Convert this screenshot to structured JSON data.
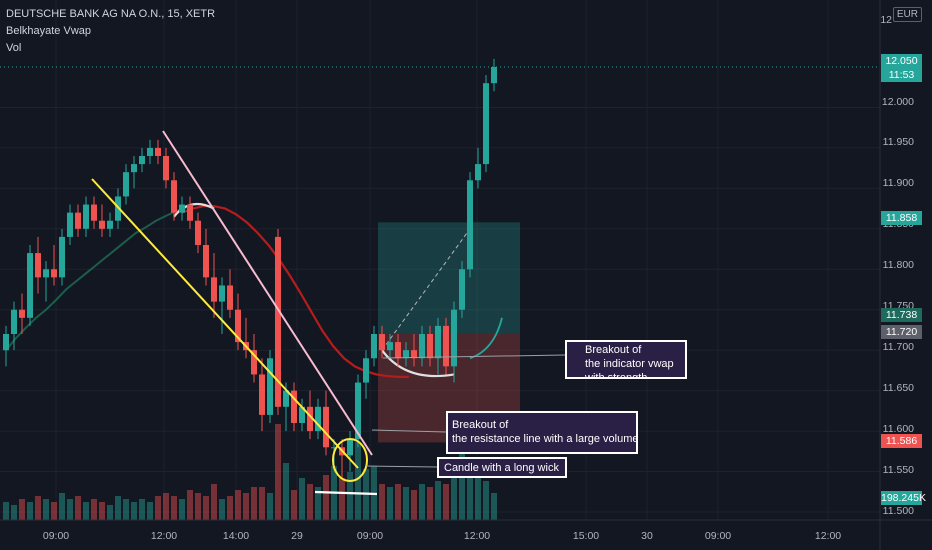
{
  "legend": {
    "symbol": "DEUTSCHE BANK AG NA O.N., 15, XETR",
    "indicator": "Belkhayate Vwap",
    "volume": "Vol"
  },
  "currency": "EUR",
  "price_axis": {
    "top_label": "12",
    "labels": [
      "12.000",
      "11.950",
      "11.900",
      "11.850",
      "11.800",
      "11.750",
      "11.700",
      "11.650",
      "11.600",
      "11.550",
      "11.500"
    ]
  },
  "price_badges": {
    "last_price": "12.050",
    "countdown": "11:53",
    "take_profit": "11.858",
    "vwap_level": "11.738",
    "entry": "11.720",
    "stop": "11.586",
    "volume_value": "198.245K"
  },
  "time_axis": {
    "labels": [
      "09:00",
      "12:00",
      "14:00",
      "29",
      "09:00",
      "12:00",
      "15:00",
      "30",
      "09:00",
      "12:00"
    ]
  },
  "colors": {
    "background": "#131722",
    "up": "#26a69a",
    "down": "#ef5350",
    "vwap_red": "#b71c1c",
    "vwap_green": "#1b5e4a",
    "yellow_line": "#ffeb3b",
    "pink_line": "#f8bbd0",
    "annotation_bg": "#2a1f44"
  },
  "annotations": {
    "vwap_breakout": [
      "Breakout of",
      "the indicator vwap",
      "with strength"
    ],
    "resistance_breakout": [
      "Breakout of",
      "the resistance line with a large volume"
    ],
    "long_wick": [
      "Candle with a long wick"
    ]
  },
  "chart_data": {
    "type": "candlestick",
    "symbol": "DEUTSCHE BANK AG NA O.N., 15, XETR",
    "timeframe": "15",
    "currency": "EUR",
    "ylim": [
      11.49,
      12.11
    ],
    "candles": [
      {
        "o": 11.7,
        "h": 11.73,
        "l": 11.68,
        "c": 11.72
      },
      {
        "o": 11.72,
        "h": 11.76,
        "l": 11.7,
        "c": 11.75
      },
      {
        "o": 11.75,
        "h": 11.77,
        "l": 11.72,
        "c": 11.74
      },
      {
        "o": 11.74,
        "h": 11.83,
        "l": 11.73,
        "c": 11.82
      },
      {
        "o": 11.82,
        "h": 11.84,
        "l": 11.77,
        "c": 11.79
      },
      {
        "o": 11.79,
        "h": 11.81,
        "l": 11.76,
        "c": 11.8
      },
      {
        "o": 11.8,
        "h": 11.83,
        "l": 11.78,
        "c": 11.79
      },
      {
        "o": 11.79,
        "h": 11.85,
        "l": 11.78,
        "c": 11.84
      },
      {
        "o": 11.84,
        "h": 11.88,
        "l": 11.83,
        "c": 11.87
      },
      {
        "o": 11.87,
        "h": 11.88,
        "l": 11.84,
        "c": 11.85
      },
      {
        "o": 11.85,
        "h": 11.89,
        "l": 11.84,
        "c": 11.88
      },
      {
        "o": 11.88,
        "h": 11.89,
        "l": 11.85,
        "c": 11.86
      },
      {
        "o": 11.86,
        "h": 11.88,
        "l": 11.84,
        "c": 11.85
      },
      {
        "o": 11.85,
        "h": 11.87,
        "l": 11.84,
        "c": 11.86
      },
      {
        "o": 11.86,
        "h": 11.9,
        "l": 11.85,
        "c": 11.89
      },
      {
        "o": 11.89,
        "h": 11.93,
        "l": 11.88,
        "c": 11.92
      },
      {
        "o": 11.92,
        "h": 11.94,
        "l": 11.9,
        "c": 11.93
      },
      {
        "o": 11.93,
        "h": 11.95,
        "l": 11.92,
        "c": 11.94
      },
      {
        "o": 11.94,
        "h": 11.96,
        "l": 11.93,
        "c": 11.95
      },
      {
        "o": 11.95,
        "h": 11.96,
        "l": 11.93,
        "c": 11.94
      },
      {
        "o": 11.94,
        "h": 11.95,
        "l": 11.9,
        "c": 11.91
      },
      {
        "o": 11.91,
        "h": 11.92,
        "l": 11.86,
        "c": 11.87
      },
      {
        "o": 11.87,
        "h": 11.89,
        "l": 11.86,
        "c": 11.88
      },
      {
        "o": 11.88,
        "h": 11.89,
        "l": 11.85,
        "c": 11.86
      },
      {
        "o": 11.86,
        "h": 11.87,
        "l": 11.82,
        "c": 11.83
      },
      {
        "o": 11.83,
        "h": 11.85,
        "l": 11.78,
        "c": 11.79
      },
      {
        "o": 11.79,
        "h": 11.82,
        "l": 11.74,
        "c": 11.76
      },
      {
        "o": 11.76,
        "h": 11.79,
        "l": 11.72,
        "c": 11.78
      },
      {
        "o": 11.78,
        "h": 11.8,
        "l": 11.74,
        "c": 11.75
      },
      {
        "o": 11.75,
        "h": 11.77,
        "l": 11.7,
        "c": 11.71
      },
      {
        "o": 11.71,
        "h": 11.74,
        "l": 11.69,
        "c": 11.7
      },
      {
        "o": 11.7,
        "h": 11.72,
        "l": 11.66,
        "c": 11.67
      },
      {
        "o": 11.67,
        "h": 11.69,
        "l": 11.6,
        "c": 11.62
      },
      {
        "o": 11.62,
        "h": 11.7,
        "l": 11.61,
        "c": 11.69
      },
      {
        "o": 11.84,
        "h": 11.85,
        "l": 11.62,
        "c": 11.63
      },
      {
        "o": 11.63,
        "h": 11.66,
        "l": 11.6,
        "c": 11.65
      },
      {
        "o": 11.65,
        "h": 11.66,
        "l": 11.6,
        "c": 11.61
      },
      {
        "o": 11.61,
        "h": 11.64,
        "l": 11.6,
        "c": 11.63
      },
      {
        "o": 11.63,
        "h": 11.65,
        "l": 11.59,
        "c": 11.6
      },
      {
        "o": 11.6,
        "h": 11.64,
        "l": 11.59,
        "c": 11.63
      },
      {
        "o": 11.63,
        "h": 11.65,
        "l": 11.57,
        "c": 11.58
      },
      {
        "o": 11.58,
        "h": 11.59,
        "l": 11.56,
        "c": 11.58
      },
      {
        "o": 11.58,
        "h": 11.59,
        "l": 11.54,
        "c": 11.57
      },
      {
        "o": 11.57,
        "h": 11.6,
        "l": 11.55,
        "c": 11.59
      },
      {
        "o": 11.59,
        "h": 11.67,
        "l": 11.58,
        "c": 11.66
      },
      {
        "o": 11.66,
        "h": 11.7,
        "l": 11.64,
        "c": 11.69
      },
      {
        "o": 11.69,
        "h": 11.73,
        "l": 11.68,
        "c": 11.72
      },
      {
        "o": 11.72,
        "h": 11.73,
        "l": 11.69,
        "c": 11.7
      },
      {
        "o": 11.7,
        "h": 11.72,
        "l": 11.69,
        "c": 11.71
      },
      {
        "o": 11.71,
        "h": 11.72,
        "l": 11.68,
        "c": 11.69
      },
      {
        "o": 11.69,
        "h": 11.71,
        "l": 11.68,
        "c": 11.7
      },
      {
        "o": 11.7,
        "h": 11.72,
        "l": 11.68,
        "c": 11.69
      },
      {
        "o": 11.69,
        "h": 11.73,
        "l": 11.68,
        "c": 11.72
      },
      {
        "o": 11.72,
        "h": 11.73,
        "l": 11.68,
        "c": 11.69
      },
      {
        "o": 11.69,
        "h": 11.74,
        "l": 11.67,
        "c": 11.73
      },
      {
        "o": 11.73,
        "h": 11.74,
        "l": 11.67,
        "c": 11.68
      },
      {
        "o": 11.68,
        "h": 11.76,
        "l": 11.66,
        "c": 11.75
      },
      {
        "o": 11.75,
        "h": 11.81,
        "l": 11.74,
        "c": 11.8
      },
      {
        "o": 11.8,
        "h": 11.92,
        "l": 11.79,
        "c": 11.91
      },
      {
        "o": 11.91,
        "h": 11.95,
        "l": 11.9,
        "c": 11.93
      },
      {
        "o": 11.93,
        "h": 12.04,
        "l": 11.92,
        "c": 12.03
      },
      {
        "o": 12.03,
        "h": 12.06,
        "l": 12.02,
        "c": 12.05
      }
    ],
    "volume": [
      0.3,
      0.25,
      0.35,
      0.3,
      0.4,
      0.35,
      0.3,
      0.45,
      0.35,
      0.4,
      0.3,
      0.35,
      0.3,
      0.25,
      0.4,
      0.35,
      0.3,
      0.35,
      0.3,
      0.4,
      0.45,
      0.4,
      0.35,
      0.5,
      0.45,
      0.4,
      0.6,
      0.35,
      0.4,
      0.5,
      0.45,
      0.55,
      0.55,
      0.45,
      1.6,
      0.95,
      0.5,
      0.7,
      0.6,
      0.55,
      0.75,
      0.9,
      0.7,
      0.8,
      1.3,
      0.85,
      0.9,
      0.6,
      0.55,
      0.6,
      0.55,
      0.5,
      0.6,
      0.55,
      0.65,
      0.6,
      0.9,
      1.1,
      0.95,
      0.85,
      0.65,
      0.45
    ],
    "vwap_red": [
      11.87,
      11.875,
      11.878,
      11.878,
      11.875,
      11.868,
      11.858,
      11.845,
      11.83,
      11.812,
      11.792,
      11.77,
      11.747,
      11.724,
      11.705,
      11.69,
      11.68,
      11.674,
      11.67,
      11.668,
      11.667,
      11.667
    ],
    "vwap_green": [
      11.7,
      11.715,
      11.728,
      11.74,
      11.75,
      11.762,
      11.775,
      11.785,
      11.795,
      11.805,
      11.815,
      11.825,
      11.835,
      11.845,
      11.852,
      11.86,
      11.866,
      11.872,
      11.876
    ],
    "trade_box": {
      "entry": 11.72,
      "take_profit": 11.858,
      "stop": 11.586
    },
    "x_ticks": [
      "09:00",
      "12:00",
      "14:00",
      "29",
      "09:00",
      "12:00",
      "15:00",
      "30",
      "09:00",
      "12:00"
    ],
    "y_ticks": [
      "12.000",
      "11.950",
      "11.900",
      "11.850",
      "11.800",
      "11.750",
      "11.700",
      "11.650",
      "11.600",
      "11.550",
      "11.500"
    ]
  }
}
